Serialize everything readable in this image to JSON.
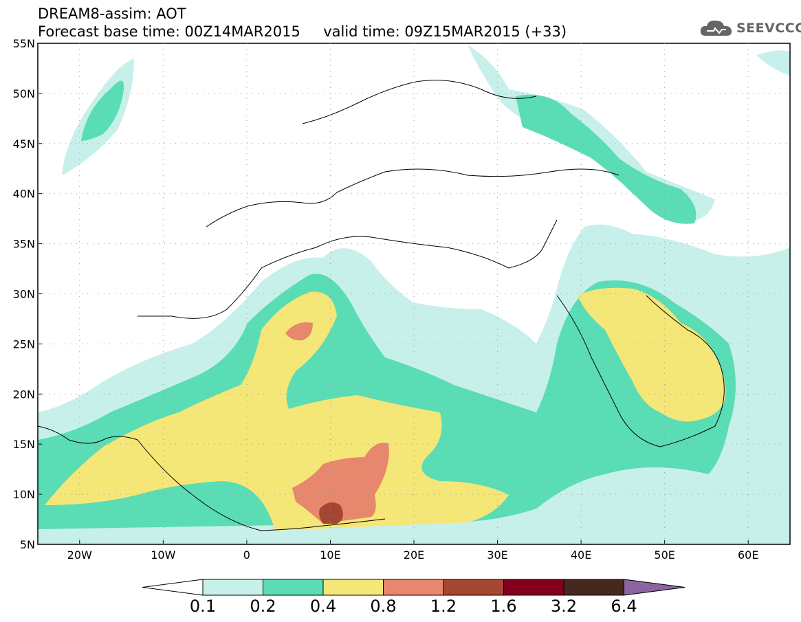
{
  "header": {
    "title_line1": "DREAM8-assim: AOT",
    "title_line2": "Forecast base time: 00Z14MAR2015     valid time: 09Z15MAR2015 (+33)"
  },
  "logo": {
    "text": "SEEVCCC",
    "icon": "cloud-icon"
  },
  "map": {
    "lon_range": [
      -25,
      65
    ],
    "lat_range": [
      5,
      55
    ],
    "lat_ticks": [
      "5N",
      "10N",
      "15N",
      "20N",
      "25N",
      "30N",
      "35N",
      "40N",
      "45N",
      "50N",
      "55N"
    ],
    "lon_ticks": [
      "20W",
      "10W",
      "0",
      "10E",
      "20E",
      "30E",
      "40E",
      "50E",
      "60E"
    ]
  },
  "colorbar": {
    "labels": [
      "0.1",
      "0.2",
      "0.4",
      "0.8",
      "1.2",
      "1.6",
      "3.2",
      "6.4"
    ],
    "colors": [
      "#ffffff",
      "#c8f0ea",
      "#5adcb4",
      "#f5e678",
      "#e6876e",
      "#a54632",
      "#82001e",
      "#46281e",
      "#8c64a0"
    ]
  }
}
